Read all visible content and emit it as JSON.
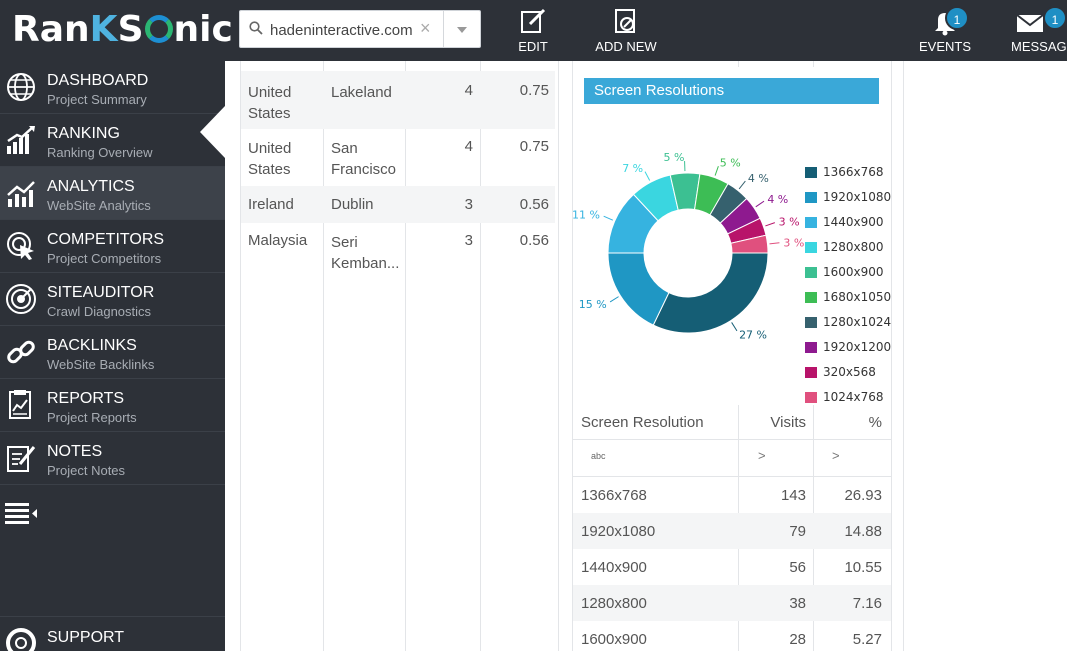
{
  "app": {
    "brand_prefix": "Ran",
    "brand_k": "K",
    "brand_s": "S",
    "brand_suffix": "nic"
  },
  "project_select": {
    "value": "hadeninteractive.com",
    "clear_symbol": "×"
  },
  "toolbar": {
    "edit_label": "EDIT",
    "add_new_label": "ADD NEW",
    "events_label": "EVENTS",
    "events_count": "1",
    "messages_label": "MESSAGES",
    "messages_count": "1"
  },
  "sidebar": {
    "items": [
      {
        "title": "DASHBOARD",
        "subtitle": "Project Summary"
      },
      {
        "title": "RANKING",
        "subtitle": "Ranking Overview"
      },
      {
        "title": "ANALYTICS",
        "subtitle": "WebSite Analytics"
      },
      {
        "title": "COMPETITORS",
        "subtitle": "Project Competitors"
      },
      {
        "title": "SITEAUDITOR",
        "subtitle": "Crawl Diagnostics"
      },
      {
        "title": "BACKLINKS",
        "subtitle": "WebSite Backlinks"
      },
      {
        "title": "REPORTS",
        "subtitle": "Project Reports"
      },
      {
        "title": "NOTES",
        "subtitle": "Project Notes"
      }
    ],
    "support_label": "SUPPORT"
  },
  "location_table": {
    "rows": [
      {
        "country": "United States",
        "city": "Lakeland",
        "visits": "4",
        "percent": "0.75"
      },
      {
        "country": "United States",
        "city": "San Francisco",
        "visits": "4",
        "percent": "0.75"
      },
      {
        "country": "Ireland",
        "city": "Dublin",
        "visits": "3",
        "percent": "0.56"
      },
      {
        "country": "Malaysia",
        "city": "Seri Kemban...",
        "visits": "3",
        "percent": "0.56"
      }
    ]
  },
  "screen_panel": {
    "title": "Screen Resolutions",
    "columns": {
      "resolution": "Screen Resolution",
      "visits": "Visits",
      "percent": "%"
    },
    "filter_text_icon": "abc",
    "filter_gt_symbol": ">",
    "rows": [
      {
        "resolution": "1366x768",
        "visits": "143",
        "percent": "26.93"
      },
      {
        "resolution": "1920x1080",
        "visits": "79",
        "percent": "14.88"
      },
      {
        "resolution": "1440x900",
        "visits": "56",
        "percent": "10.55"
      },
      {
        "resolution": "1280x800",
        "visits": "38",
        "percent": "7.16"
      },
      {
        "resolution": "1600x900",
        "visits": "28",
        "percent": "5.27"
      }
    ]
  },
  "chart_data": {
    "type": "pie",
    "title": "",
    "categories": [
      "1366x768",
      "1920x1080",
      "1440x900",
      "1280x800",
      "1600x900",
      "1680x1050",
      "1280x1024",
      "1920x1200",
      "320x568",
      "1024x768"
    ],
    "values": [
      27,
      15,
      11,
      7,
      5,
      5,
      4,
      4,
      3,
      3
    ],
    "labels": [
      "27 %",
      "15 %",
      "11 %",
      "7 %",
      "5 %",
      "5 %",
      "4 %",
      "4 %",
      "3 %",
      "3 %"
    ],
    "colors": [
      "#155e75",
      "#1f97c4",
      "#36b3e0",
      "#3ad6e0",
      "#3cc092",
      "#3dbd55",
      "#36616e",
      "#8e1a8f",
      "#b8136a",
      "#e0507e"
    ],
    "legend": "right",
    "donut": true
  }
}
